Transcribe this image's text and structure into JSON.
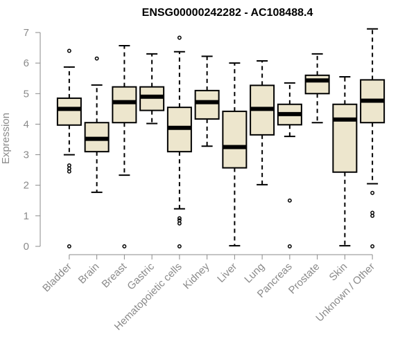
{
  "chart_data": {
    "type": "boxplot",
    "title": "ENSG00000242282 - AC108488.4",
    "ylabel": "Expression",
    "xlabel": "",
    "ylim": [
      0,
      7.2
    ],
    "yticks": [
      0,
      1,
      2,
      3,
      4,
      5,
      6,
      7
    ],
    "box_fill": "#ede6cd",
    "categories": [
      "Bladder",
      "Brain",
      "Breast",
      "Gastric",
      "Hematopoietic cells",
      "Kidney",
      "Liver",
      "Lung",
      "Pancreas",
      "Prostate",
      "Skin",
      "Unknown / Other"
    ],
    "boxes": [
      {
        "q1": 3.97,
        "median": 4.5,
        "q3": 4.85,
        "wlo": 3.0,
        "whi": 5.87,
        "outliers": [
          6.4,
          2.65,
          2.55,
          2.45,
          0.0
        ]
      },
      {
        "q1": 3.1,
        "median": 3.52,
        "q3": 4.05,
        "wlo": 1.77,
        "whi": 5.28,
        "outliers": [
          6.15
        ]
      },
      {
        "q1": 4.05,
        "median": 4.72,
        "q3": 5.22,
        "wlo": 2.33,
        "whi": 6.57,
        "outliers": [
          0.0
        ]
      },
      {
        "q1": 4.45,
        "median": 4.9,
        "q3": 5.22,
        "wlo": 4.02,
        "whi": 6.3,
        "outliers": []
      },
      {
        "q1": 3.1,
        "median": 3.88,
        "q3": 4.55,
        "wlo": 1.23,
        "whi": 6.37,
        "outliers": [
          6.83,
          0.92,
          0.85,
          0.75,
          0.0
        ]
      },
      {
        "q1": 4.17,
        "median": 4.72,
        "q3": 5.1,
        "wlo": 3.28,
        "whi": 6.22,
        "outliers": []
      },
      {
        "q1": 2.57,
        "median": 3.25,
        "q3": 4.42,
        "wlo": 0.02,
        "whi": 6.0,
        "outliers": []
      },
      {
        "q1": 3.65,
        "median": 4.5,
        "q3": 5.27,
        "wlo": 2.02,
        "whi": 6.07,
        "outliers": []
      },
      {
        "q1": 3.98,
        "median": 4.33,
        "q3": 4.65,
        "wlo": 3.6,
        "whi": 5.35,
        "outliers": [
          1.5,
          0.0
        ]
      },
      {
        "q1": 5.0,
        "median": 5.43,
        "q3": 5.6,
        "wlo": 4.05,
        "whi": 6.3,
        "outliers": []
      },
      {
        "q1": 2.43,
        "median": 4.15,
        "q3": 4.65,
        "wlo": 0.02,
        "whi": 5.55,
        "outliers": []
      },
      {
        "q1": 4.05,
        "median": 4.77,
        "q3": 5.45,
        "wlo": 2.05,
        "whi": 7.12,
        "outliers": [
          1.75,
          1.1,
          1.0,
          0.0
        ]
      }
    ]
  }
}
